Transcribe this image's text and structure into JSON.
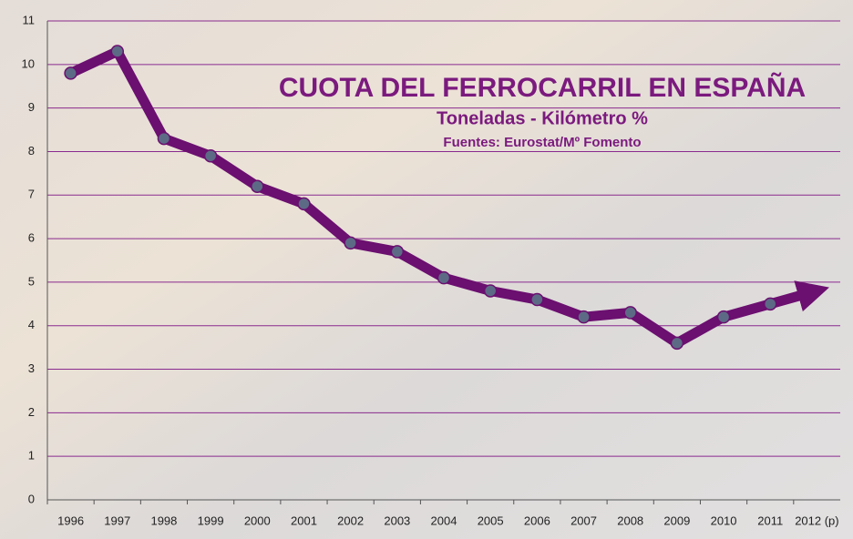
{
  "chart_data": {
    "type": "line",
    "title": "CUOTA DEL FERROCARRIL EN ESPAÑA",
    "subtitle": "Toneladas - Kilómetro %",
    "source": "Fuentes: Eurostat/Mº Fomento",
    "categories": [
      "1996",
      "1997",
      "1998",
      "1999",
      "2000",
      "2001",
      "2002",
      "2003",
      "2004",
      "2005",
      "2006",
      "2007",
      "2008",
      "2009",
      "2010",
      "2011",
      "2012 (p)"
    ],
    "series": [
      {
        "name": "Cuota",
        "color": "#6b0f70",
        "values": [
          9.8,
          10.3,
          8.3,
          7.9,
          7.2,
          6.8,
          5.9,
          5.7,
          5.1,
          4.8,
          4.6,
          4.2,
          4.3,
          3.6,
          4.2,
          4.5,
          4.8
        ]
      }
    ],
    "ylim": [
      0,
      11
    ],
    "yticks": [
      0,
      1,
      2,
      3,
      4,
      5,
      6,
      7,
      8,
      9,
      10,
      11
    ],
    "grid": true
  }
}
